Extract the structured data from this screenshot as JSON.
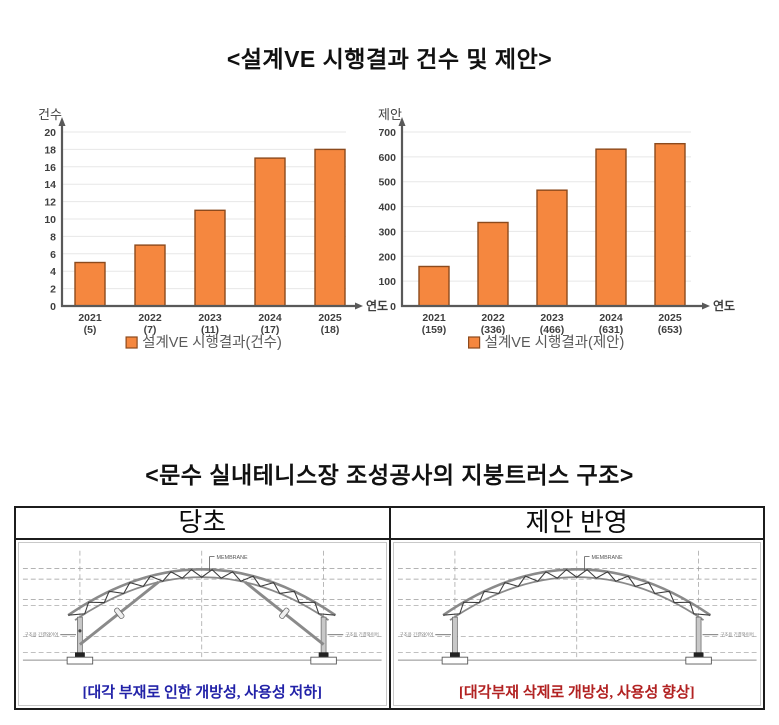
{
  "section1": {
    "title": "<설계VE 시행결과 건수 및 제안>"
  },
  "chart_data": [
    {
      "type": "bar",
      "title": "설계VE 시행결과(건수)",
      "ylabel": "건수",
      "xlabel": "연도",
      "categories": [
        "2021",
        "2022",
        "2023",
        "2024",
        "2025"
      ],
      "category_sublabels": [
        "(5)",
        "(7)",
        "(11)",
        "(17)",
        "(18)"
      ],
      "values": [
        5,
        7,
        11,
        17,
        18
      ],
      "ylim": [
        0,
        20
      ],
      "ytick_step": 2,
      "grid": true,
      "legend": "설계VE 시행결과(건수)",
      "legend_position": "bottom",
      "bar_color": "#F5873F",
      "bar_border": "#8C4A1D"
    },
    {
      "type": "bar",
      "title": "설계VE 시행결과(제안)",
      "ylabel": "제안",
      "xlabel": "연도",
      "categories": [
        "2021",
        "2022",
        "2023",
        "2024",
        "2025"
      ],
      "category_sublabels": [
        "(159)",
        "(336)",
        "(466)",
        "(631)",
        "(653)"
      ],
      "values": [
        159,
        336,
        466,
        631,
        653
      ],
      "ylim": [
        0,
        700
      ],
      "ytick_step": 100,
      "grid": true,
      "legend": "설계VE 시행결과(제안)",
      "legend_position": "bottom",
      "bar_color": "#F5873F",
      "bar_border": "#8C4A1D"
    }
  ],
  "section2": {
    "title": "<문수 실내테니스장 조성공사의 지붕트러스 구조>",
    "panels": [
      {
        "header": "당초",
        "caption": "[대각 부재로 인한 개방성, 사용성 저하]",
        "caption_color": "#2222A8",
        "membrane_label": "MEMBRANE",
        "left_label": "구조용 긴결와이어",
        "right_label": "구조용 긴결와이어",
        "has_diagonals": true
      },
      {
        "header": "제안 반영",
        "caption": "[대각부재 삭제로 개방성, 사용성 향상]",
        "caption_color": "#B22222",
        "membrane_label": "MEMBRANE",
        "left_label": "구조용 긴결와이어",
        "right_label": "구조용 긴결와이어",
        "has_diagonals": false
      }
    ]
  },
  "colors": {
    "bar_fill": "#F5873F",
    "bar_border": "#8C4A1D",
    "axis": "#595959",
    "grid": "#E7E7E7",
    "drawing_line": "#8a8a8a",
    "drawing_dark": "#3c3c3c"
  }
}
